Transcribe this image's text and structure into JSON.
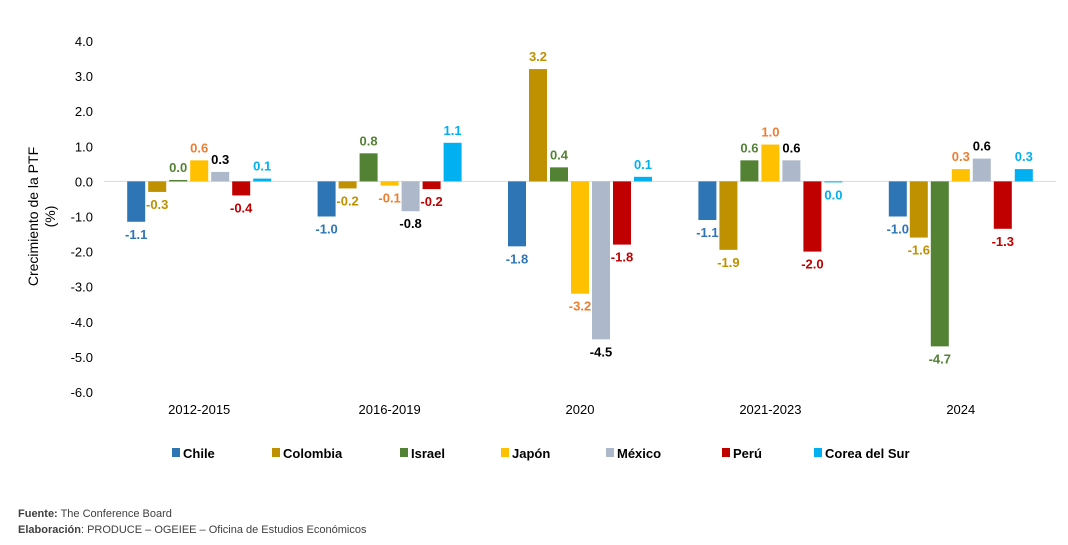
{
  "chart_data": {
    "type": "bar",
    "ylabel": "Crecimiento de la PTF\n(%)",
    "ylim": [
      -6.0,
      4.0
    ],
    "yticks": [
      4.0,
      3.0,
      2.0,
      1.0,
      0.0,
      -1.0,
      -2.0,
      -3.0,
      -4.0,
      -5.0,
      -6.0
    ],
    "yticks_labels": [
      "4.0",
      "3.0",
      "2.0",
      "1.0",
      "0.0",
      "-1.0",
      "-2.0",
      "-3.0",
      "-4.0",
      "-5.0",
      "-6.0"
    ],
    "categories": [
      "2012-2015",
      "2016-2019",
      "2020",
      "2021-2023",
      "2024"
    ],
    "legend_position": "bottom",
    "grid": false,
    "series": [
      {
        "name": "Chile",
        "color": "#2E75B6",
        "values": [
          -1.15,
          -1.0,
          -1.85,
          -1.1,
          -1.0
        ],
        "labels": [
          "-1.1",
          "-1.0",
          "-1.8",
          "-1.1",
          "-1.0"
        ],
        "label_color": "#2E75B6"
      },
      {
        "name": "Colombia",
        "color": "#BF9000",
        "values": [
          -0.3,
          -0.2,
          3.2,
          -1.95,
          -1.6
        ],
        "labels": [
          "-0.3",
          "-0.2",
          "3.2",
          "-1.9",
          "-1.6"
        ],
        "label_color": "#BF9000"
      },
      {
        "name": "Israel",
        "color": "#548235",
        "values": [
          0.04,
          0.8,
          0.4,
          0.6,
          -4.7
        ],
        "labels": [
          "0.0",
          "0.8",
          "0.4",
          "0.6",
          "-4.7"
        ],
        "label_color": "#548235"
      },
      {
        "name": "Japón",
        "color": "#FFC000",
        "values": [
          0.6,
          -0.12,
          -3.2,
          1.05,
          0.35
        ],
        "labels": [
          "0.6",
          "-0.1",
          "-3.2",
          "1.0",
          "0.3"
        ],
        "label_color": "#ED7D31"
      },
      {
        "name": "México",
        "color": "#ADB9CA",
        "values": [
          0.27,
          -0.85,
          -4.5,
          0.6,
          0.65
        ],
        "labels": [
          "0.3",
          "-0.8",
          "-4.5",
          "0.6",
          "0.6"
        ],
        "label_color": "#000000"
      },
      {
        "name": "Perú",
        "color": "#C00000",
        "values": [
          -0.4,
          -0.22,
          -1.8,
          -2.0,
          -1.35
        ],
        "labels": [
          "-0.4",
          "-0.2",
          "-1.8",
          "-2.0",
          "-1.3"
        ],
        "label_color": "#C00000"
      },
      {
        "name": "Corea del Sur",
        "color": "#00B0F0",
        "values": [
          0.08,
          1.1,
          0.13,
          -0.02,
          0.35
        ],
        "labels": [
          "0.1",
          "1.1",
          "0.1",
          "0.0",
          "0.3"
        ],
        "label_color": "#00B0F0"
      }
    ]
  },
  "footer": {
    "source_label": "Fuente:",
    "source_text": " The Conference Board",
    "made_by_label": "Elaboración",
    "made_by_text": ": PRODUCE – OGEIEE – Oficina de Estudios Económicos"
  }
}
